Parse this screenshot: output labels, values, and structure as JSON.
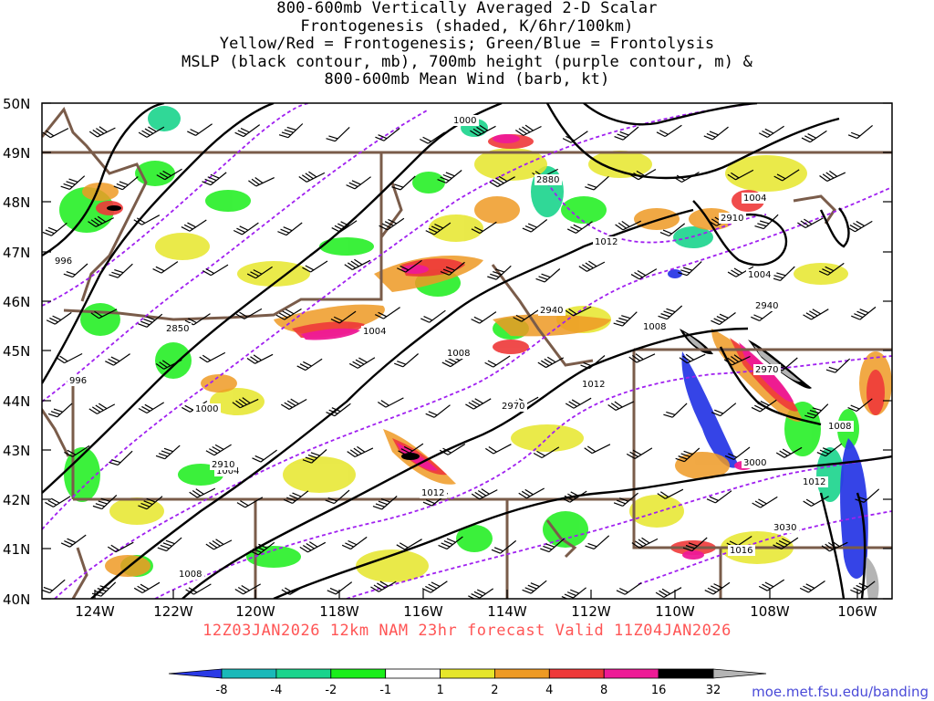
{
  "title": {
    "line1": "800-600mb Vertically Averaged 2-D Scalar",
    "line2": "Frontogenesis (shaded, K/6hr/100km)",
    "line3": "Yellow/Red = Frontogenesis;  Green/Blue = Frontolysis",
    "line4": "MSLP (black contour, mb), 700mb height (purple contour, m) &",
    "line5": "800-600mb Mean Wind (barb, kt)"
  },
  "valid_line": "12Z03JAN2026 12km NAM 23hr forecast Valid 11Z04JAN2026",
  "credit": "moe.met.fsu.edu/banding",
  "map": {
    "lat_labels": [
      "50N",
      "49N",
      "48N",
      "47N",
      "46N",
      "45N",
      "44N",
      "43N",
      "42N",
      "41N",
      "40N"
    ],
    "lon_labels": [
      "124W",
      "122W",
      "120W",
      "118W",
      "116W",
      "114W",
      "112W",
      "110W",
      "108W",
      "106W"
    ],
    "mslp_labels": [
      "1000",
      "1004",
      "1004",
      "1008",
      "1012",
      "1008",
      "1012",
      "1016",
      "1004",
      "1008",
      "1000",
      "1004",
      "1012",
      "1008",
      "1012",
      "996",
      "996"
    ],
    "height_labels": [
      "2880",
      "2910",
      "2940",
      "2940",
      "2850",
      "2970",
      "2970",
      "3000",
      "3030",
      "2910"
    ],
    "colors": {
      "mslp_contour": "#000000",
      "height_contour": "#a020f0",
      "state_border": "#7a5c4a",
      "barb": "#000000"
    }
  },
  "colorbar": {
    "ticks": [
      "-8",
      "-4",
      "-2",
      "-1",
      "1",
      "2",
      "4",
      "8",
      "16",
      "32"
    ],
    "colors": [
      "#2a3ae6",
      "#1ab9b9",
      "#1ad48c",
      "#1aee1a",
      "#ffffff",
      "#e6e62a",
      "#ee9a24",
      "#ee3838",
      "#ee1a96",
      "#000000",
      "#b4b4b4"
    ]
  }
}
